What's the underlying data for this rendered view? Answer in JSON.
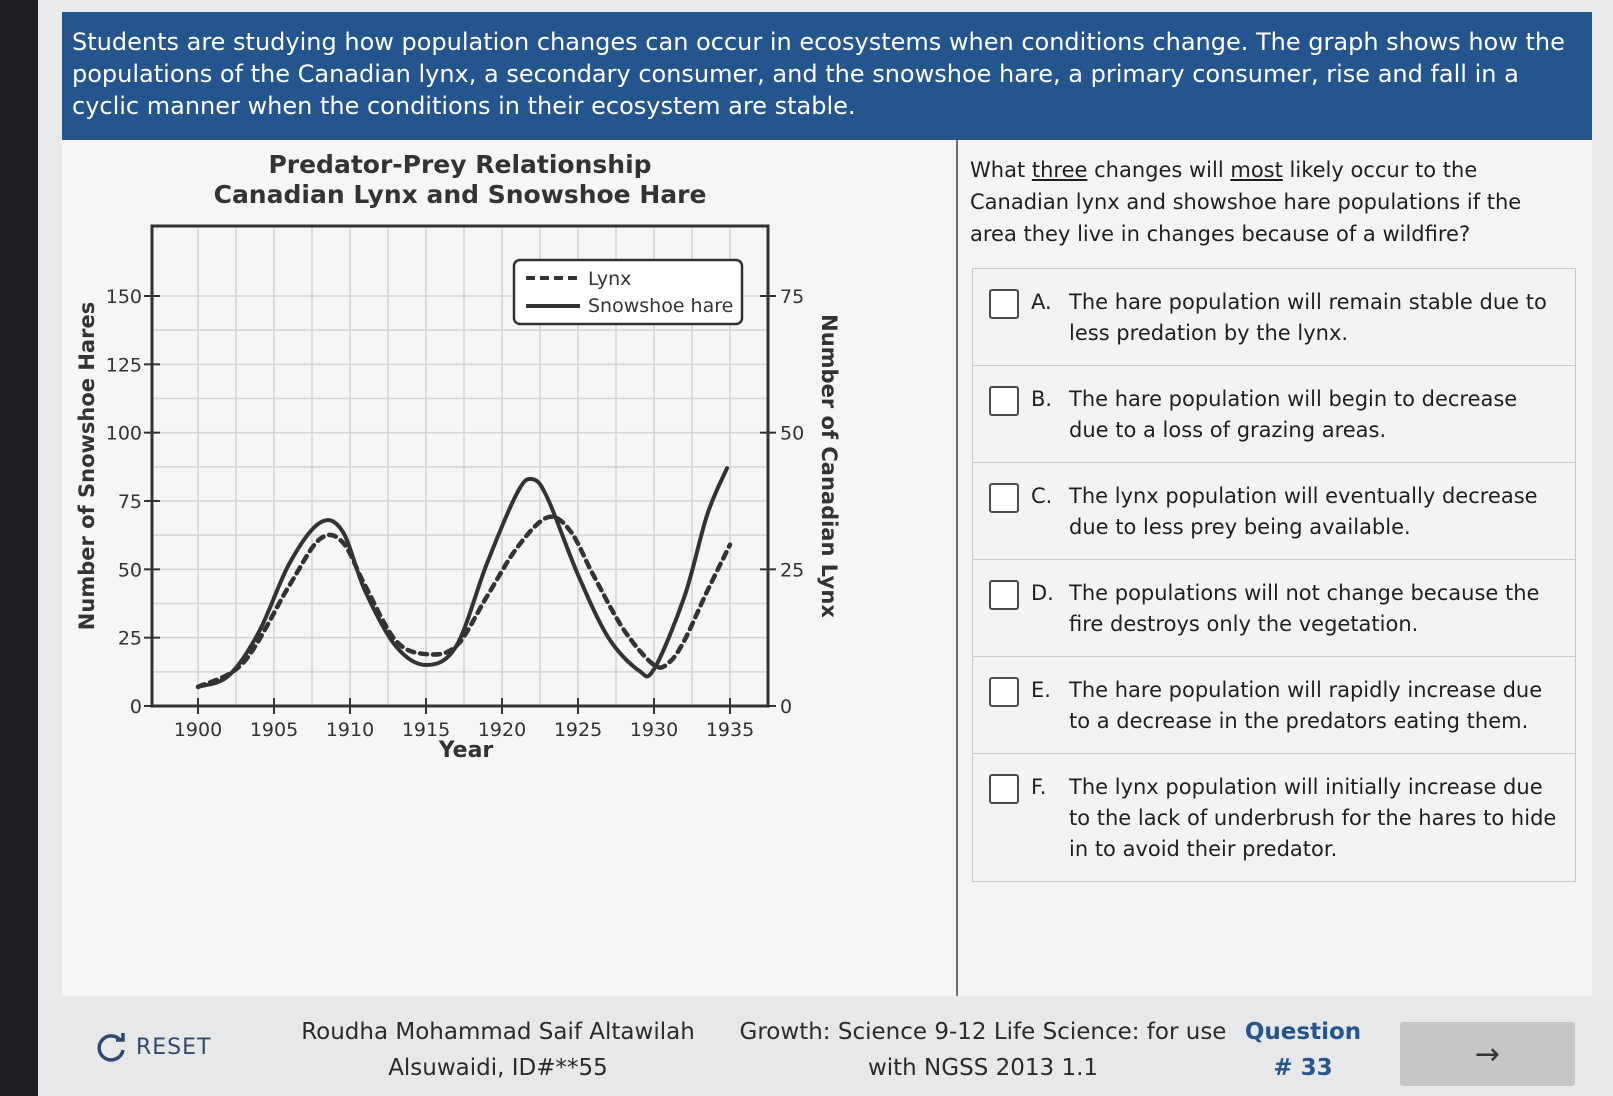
{
  "banner": {
    "text": "Students are studying how population changes can occur in ecosystems when conditions change. The graph shows how the populations of the Canadian lynx, a secondary consumer, and the snowshoe hare, a primary consumer, rise and fall in a cyclic manner when the conditions in their ecosystem are stable."
  },
  "question": {
    "part1": "What ",
    "three": "three",
    "part2": " changes will ",
    "most": "most",
    "part3": " likely occur to the Canadian lynx and showshoe hare populations if the area they live in changes because of a wildfire?"
  },
  "options": [
    {
      "letter": "A.",
      "text": "The hare population will remain stable due to less predation by the lynx."
    },
    {
      "letter": "B.",
      "text": "The hare population will begin to decrease due to a loss of grazing areas."
    },
    {
      "letter": "C.",
      "text": "The lynx population will eventually decrease due to less prey being available."
    },
    {
      "letter": "D.",
      "text": "The populations will not change because the fire destroys only the vegetation."
    },
    {
      "letter": "E.",
      "text": "The hare population will rapidly increase due to a decrease in the predators eating them."
    },
    {
      "letter": "F.",
      "text": "The lynx population will initially increase due to the lack of underbrush for the hares to hide in to avoid their predator."
    }
  ],
  "chart_data": {
    "type": "line",
    "title": "Predator-Prey Relationship",
    "subtitle": "Canadian Lynx and Snowshoe Hare",
    "xlabel": "Year",
    "ylabel": "Number of Snowshoe Hares",
    "ylabel_right": "Number of Canadian Lynx",
    "xlim": [
      1900,
      1935
    ],
    "ylim": [
      0,
      150
    ],
    "ylim_right": [
      0,
      75
    ],
    "x_ticks": [
      "1900",
      "1905",
      "1910",
      "1915",
      "1920",
      "1925",
      "1930",
      "1935"
    ],
    "y_ticks": [
      "0",
      "25",
      "50",
      "75",
      "100",
      "125",
      "150"
    ],
    "y_ticks_right": [
      "0",
      "25",
      "50",
      "75"
    ],
    "grid": true,
    "legend": "top-right",
    "series": [
      {
        "name": "Lynx",
        "axis": "right",
        "style": "dashed",
        "points": [
          [
            1900,
            3.5
          ],
          [
            1903,
            8
          ],
          [
            1906,
            22
          ],
          [
            1908,
            30.5
          ],
          [
            1909.5,
            30
          ],
          [
            1911,
            22
          ],
          [
            1913,
            12
          ],
          [
            1915,
            9.5
          ],
          [
            1917,
            11
          ],
          [
            1919,
            20
          ],
          [
            1921,
            29
          ],
          [
            1923,
            34.5
          ],
          [
            1924.5,
            32
          ],
          [
            1926,
            24
          ],
          [
            1928,
            14
          ],
          [
            1930,
            7.5
          ],
          [
            1931,
            8
          ],
          [
            1932,
            12
          ],
          [
            1933.5,
            21
          ],
          [
            1935,
            29.5
          ]
        ]
      },
      {
        "name": "Snowshoe hare",
        "axis": "left",
        "style": "solid",
        "points": [
          [
            1900,
            7
          ],
          [
            1902,
            11
          ],
          [
            1904,
            27
          ],
          [
            1906,
            52
          ],
          [
            1908,
            67
          ],
          [
            1909.5,
            64
          ],
          [
            1911,
            42
          ],
          [
            1913,
            22
          ],
          [
            1915,
            15
          ],
          [
            1917,
            22
          ],
          [
            1919,
            52
          ],
          [
            1921,
            78
          ],
          [
            1922,
            83
          ],
          [
            1923,
            76
          ],
          [
            1925,
            48
          ],
          [
            1927,
            25
          ],
          [
            1929,
            13
          ],
          [
            1930,
            13.5
          ],
          [
            1932,
            40
          ],
          [
            1933.5,
            70
          ],
          [
            1934.8,
            87
          ]
        ]
      }
    ]
  },
  "footer": {
    "reset_label": "RESET",
    "student_line1": "Roudha Mohammad Saif Altawilah",
    "student_line2": "Alsuwaidi, ID#**55",
    "course_line1": "Growth: Science 9-12 Life Science: for use",
    "course_line2": "with NGSS 2013 1.1",
    "question_line1": "Question",
    "question_line2": "# 33",
    "next_icon": "arrow-right-icon"
  }
}
